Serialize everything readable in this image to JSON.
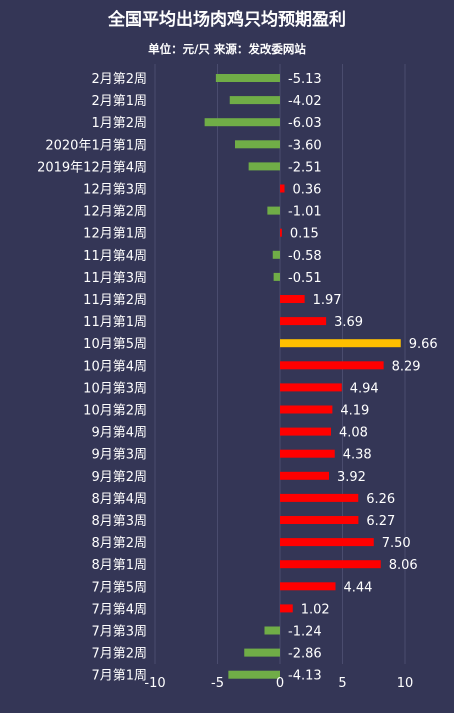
{
  "chart_data": {
    "type": "bar",
    "orientation": "horizontal",
    "title": "全国平均出场肉鸡只均预期盈利",
    "subtitle": "单位：元/只 来源：发改委网站",
    "categories": [
      "2月第2周",
      "2月第1周",
      "1月第2周",
      "2020年1月第1周",
      "2019年12月第4周",
      "12月第3周",
      "12月第2周",
      "12月第1周",
      "11月第4周",
      "11月第3周",
      "11月第2周",
      "11月第1周",
      "10月第5周",
      "10月第4周",
      "10月第3周",
      "10月第2周",
      "9月第4周",
      "9月第3周",
      "9月第2周",
      "8月第4周",
      "8月第3周",
      "8月第2周",
      "8月第1周",
      "7月第5周",
      "7月第4周",
      "7月第3周",
      "7月第2周",
      "7月第1周"
    ],
    "values": [
      -5.13,
      -4.02,
      -6.03,
      -3.6,
      -2.51,
      0.36,
      -1.01,
      0.15,
      -0.58,
      -0.51,
      1.97,
      3.69,
      9.66,
      8.29,
      4.94,
      4.19,
      4.08,
      4.38,
      3.92,
      6.26,
      6.27,
      7.5,
      8.06,
      4.44,
      1.02,
      -1.24,
      -2.86,
      -4.13
    ],
    "value_labels": [
      "-5.13",
      "-4.02",
      "-6.03",
      "-3.60",
      "-2.51",
      "0.36",
      "-1.01",
      "0.15",
      "-0.58",
      "-0.51",
      "1.97",
      "3.69",
      "9.66",
      "8.29",
      "4.94",
      "4.19",
      "4.08",
      "4.38",
      "3.92",
      "6.26",
      "6.27",
      "7.50",
      "8.06",
      "4.44",
      "1.02",
      "-1.24",
      "-2.86",
      "-4.13"
    ],
    "xlim": [
      -10,
      10
    ],
    "xticks": [
      "-10",
      "-5",
      "0",
      "5",
      "10"
    ],
    "xtick_values": [
      -10,
      -5,
      0,
      5,
      10
    ],
    "colors": {
      "positive": "#ff0000",
      "negative": "#70ad47",
      "highlight": "#ffc000",
      "background": "#343656",
      "grid": "#4a4c6e"
    },
    "highlight_category": "10月第5周",
    "grid": true
  }
}
